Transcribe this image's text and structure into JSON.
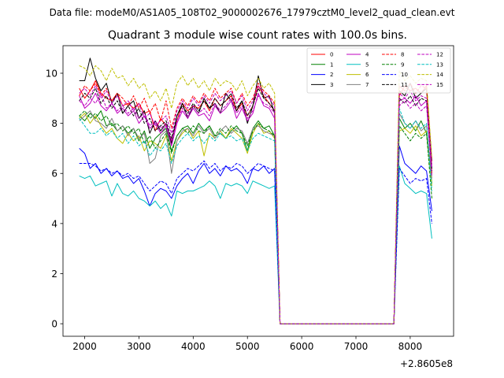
{
  "figure": {
    "suptitle": "Data file: modeM0/AS1A05_108T02_9000002676_17979cztM0_level2_quad_clean.evt"
  },
  "chart_data": {
    "type": "line",
    "title": "Quadrant 3 module wise count rates with 100.0s bins.",
    "xlabel": "",
    "ylabel": "",
    "x_offset_label": "+2.8605e8",
    "xlim": [
      1600,
      8800
    ],
    "ylim": [
      -0.5,
      11.1
    ],
    "xticks": [
      2000,
      3000,
      4000,
      5000,
      6000,
      7000,
      8000
    ],
    "yticks": [
      0,
      2,
      4,
      6,
      8,
      10
    ],
    "legend_position": "upper right",
    "legend_columns": 4,
    "grid": false,
    "x": [
      1900,
      2000,
      2100,
      2200,
      2300,
      2400,
      2500,
      2600,
      2700,
      2800,
      2900,
      3000,
      3100,
      3200,
      3300,
      3400,
      3500,
      3600,
      3700,
      3800,
      3900,
      4000,
      4100,
      4200,
      4300,
      4400,
      4500,
      4600,
      4700,
      4800,
      4900,
      5000,
      5100,
      5200,
      5300,
      5400,
      5500,
      5600,
      5700,
      5800,
      5900,
      6000,
      6100,
      6200,
      6300,
      6400,
      6500,
      6600,
      6700,
      6800,
      6900,
      7000,
      7100,
      7200,
      7300,
      7400,
      7500,
      7600,
      7700,
      7800,
      7900,
      8000,
      8100,
      8200,
      8300,
      8400
    ],
    "series": [
      {
        "name": "0",
        "color": "#ff0000",
        "dash": "solid",
        "values": [
          9.4,
          9.0,
          9.3,
          9.7,
          9.2,
          9.0,
          8.9,
          9.2,
          8.7,
          8.8,
          8.6,
          8.8,
          8.4,
          8.5,
          7.7,
          8.2,
          7.9,
          7.3,
          8.1,
          8.8,
          8.5,
          8.7,
          8.6,
          8.9,
          8.5,
          9.0,
          8.7,
          8.9,
          9.1,
          8.5,
          8.8,
          8.3,
          8.7,
          9.5,
          9.1,
          8.8,
          8.5,
          0.0,
          0.0,
          0.0,
          0.0,
          0.0,
          0.0,
          0.0,
          0.0,
          0.0,
          0.0,
          0.0,
          0.0,
          0.0,
          0.0,
          0.0,
          0.0,
          0.0,
          0.0,
          0.0,
          0.0,
          0.0,
          0.0,
          9.1,
          9.5,
          9.3,
          9.4,
          9.2,
          9.5,
          6.0
        ]
      },
      {
        "name": "1",
        "color": "#008000",
        "dash": "solid",
        "values": [
          8.3,
          8.1,
          8.4,
          8.2,
          8.5,
          7.9,
          8.0,
          7.7,
          7.9,
          7.6,
          7.8,
          7.3,
          7.7,
          7.0,
          7.4,
          7.6,
          7.8,
          6.9,
          7.5,
          7.8,
          7.9,
          7.6,
          8.0,
          7.7,
          7.9,
          7.5,
          7.6,
          7.4,
          7.7,
          7.9,
          7.6,
          6.9,
          7.8,
          8.1,
          7.8,
          7.9,
          7.5,
          0.0,
          0.0,
          0.0,
          0.0,
          0.0,
          0.0,
          0.0,
          0.0,
          0.0,
          0.0,
          0.0,
          0.0,
          0.0,
          0.0,
          0.0,
          0.0,
          0.0,
          0.0,
          0.0,
          0.0,
          0.0,
          0.0,
          8.2,
          7.8,
          8.0,
          7.7,
          8.1,
          7.6,
          5.6
        ]
      },
      {
        "name": "2",
        "color": "#0000ff",
        "dash": "solid",
        "values": [
          7.0,
          6.8,
          6.2,
          6.4,
          6.0,
          6.2,
          5.9,
          6.1,
          5.8,
          5.9,
          5.6,
          5.8,
          5.3,
          4.7,
          5.2,
          5.4,
          5.3,
          5.0,
          5.5,
          5.8,
          6.0,
          5.6,
          6.1,
          6.4,
          6.0,
          6.2,
          5.9,
          6.3,
          6.1,
          6.2,
          6.0,
          5.6,
          6.2,
          6.1,
          6.3,
          6.0,
          6.2,
          0.0,
          0.0,
          0.0,
          0.0,
          0.0,
          0.0,
          0.0,
          0.0,
          0.0,
          0.0,
          0.0,
          0.0,
          0.0,
          0.0,
          0.0,
          0.0,
          0.0,
          0.0,
          0.0,
          0.0,
          0.0,
          0.0,
          7.1,
          6.4,
          6.2,
          6.0,
          6.3,
          6.1,
          4.5
        ]
      },
      {
        "name": "3",
        "color": "#000000",
        "dash": "solid",
        "values": [
          9.7,
          9.7,
          10.6,
          9.8,
          9.3,
          9.6,
          8.8,
          9.2,
          8.4,
          8.7,
          8.9,
          8.2,
          8.5,
          7.6,
          8.1,
          7.7,
          8.0,
          7.2,
          8.3,
          8.8,
          8.2,
          8.7,
          8.4,
          9.0,
          8.6,
          8.8,
          8.4,
          9.2,
          8.9,
          8.5,
          8.9,
          8.0,
          8.7,
          9.9,
          9.0,
          9.1,
          8.4,
          0.0,
          0.0,
          0.0,
          0.0,
          0.0,
          0.0,
          0.0,
          0.0,
          0.0,
          0.0,
          0.0,
          0.0,
          0.0,
          0.0,
          0.0,
          0.0,
          0.0,
          0.0,
          0.0,
          0.0,
          0.0,
          0.0,
          9.3,
          9.1,
          9.6,
          9.0,
          9.2,
          9.4,
          6.5
        ]
      },
      {
        "name": "4",
        "color": "#bf00bf",
        "dash": "solid",
        "values": [
          9.1,
          8.6,
          8.8,
          9.2,
          8.7,
          8.5,
          8.8,
          8.4,
          8.6,
          8.3,
          8.5,
          8.0,
          8.3,
          7.8,
          8.0,
          7.6,
          7.9,
          7.1,
          8.0,
          8.5,
          8.2,
          8.6,
          8.3,
          8.4,
          8.1,
          8.7,
          8.4,
          8.6,
          8.9,
          8.2,
          8.6,
          8.1,
          8.4,
          9.2,
          8.7,
          8.6,
          8.2,
          0.0,
          0.0,
          0.0,
          0.0,
          0.0,
          0.0,
          0.0,
          0.0,
          0.0,
          0.0,
          0.0,
          0.0,
          0.0,
          0.0,
          0.0,
          0.0,
          0.0,
          0.0,
          0.0,
          0.0,
          0.0,
          0.0,
          8.9,
          9.0,
          8.8,
          9.1,
          8.7,
          8.9,
          6.2
        ]
      },
      {
        "name": "5",
        "color": "#00bfbf",
        "dash": "solid",
        "values": [
          5.9,
          5.8,
          5.9,
          5.5,
          5.6,
          5.7,
          5.1,
          5.6,
          5.2,
          5.1,
          5.3,
          5.0,
          4.9,
          4.7,
          4.9,
          4.6,
          4.8,
          4.3,
          5.3,
          5.2,
          5.3,
          5.3,
          5.4,
          5.5,
          5.7,
          5.5,
          5.0,
          5.6,
          5.5,
          5.6,
          5.5,
          5.2,
          5.7,
          5.6,
          5.5,
          5.4,
          5.5,
          0.0,
          0.0,
          0.0,
          0.0,
          0.0,
          0.0,
          0.0,
          0.0,
          0.0,
          0.0,
          0.0,
          0.0,
          0.0,
          0.0,
          0.0,
          0.0,
          0.0,
          0.0,
          0.0,
          0.0,
          0.0,
          0.0,
          6.3,
          5.6,
          5.4,
          5.2,
          5.3,
          5.2,
          3.4
        ]
      },
      {
        "name": "6",
        "color": "#bfbf00",
        "dash": "solid",
        "values": [
          8.2,
          8.4,
          8.0,
          8.3,
          7.9,
          7.6,
          7.8,
          7.4,
          7.2,
          7.6,
          7.3,
          7.5,
          6.9,
          7.3,
          7.2,
          7.0,
          7.5,
          6.5,
          7.3,
          7.6,
          7.8,
          7.4,
          7.7,
          6.7,
          7.6,
          7.4,
          7.7,
          7.4,
          7.8,
          7.6,
          7.4,
          6.8,
          7.6,
          8.0,
          7.6,
          7.7,
          7.4,
          0.0,
          0.0,
          0.0,
          0.0,
          0.0,
          0.0,
          0.0,
          0.0,
          0.0,
          0.0,
          0.0,
          0.0,
          0.0,
          0.0,
          0.0,
          0.0,
          0.0,
          0.0,
          0.0,
          0.0,
          0.0,
          0.0,
          7.7,
          7.8,
          7.6,
          7.9,
          7.5,
          7.7,
          5.5
        ]
      },
      {
        "name": "7",
        "color": "#808080",
        "dash": "solid",
        "values": [
          8.1,
          8.3,
          8.5,
          8.1,
          8.0,
          7.8,
          8.2,
          7.7,
          7.9,
          7.5,
          7.8,
          7.4,
          7.6,
          6.4,
          6.6,
          7.5,
          7.7,
          6.0,
          7.3,
          7.7,
          7.8,
          7.5,
          7.9,
          7.6,
          7.8,
          7.4,
          7.7,
          7.9,
          7.6,
          7.8,
          7.7,
          7.2,
          7.8,
          7.9,
          7.7,
          7.6,
          7.5,
          0.0,
          0.0,
          0.0,
          0.0,
          0.0,
          0.0,
          0.0,
          0.0,
          0.0,
          0.0,
          0.0,
          0.0,
          0.0,
          0.0,
          0.0,
          0.0,
          0.0,
          0.0,
          0.0,
          0.0,
          0.0,
          0.0,
          8.4,
          8.0,
          7.8,
          8.1,
          7.7,
          7.9,
          5.8
        ]
      },
      {
        "name": "8",
        "color": "#ff0000",
        "dash": "dashed",
        "values": [
          9.1,
          9.5,
          9.3,
          9.6,
          9.1,
          9.4,
          8.9,
          9.2,
          9.0,
          8.7,
          9.1,
          8.6,
          9.0,
          8.4,
          8.8,
          8.1,
          8.9,
          7.8,
          8.6,
          9.0,
          8.7,
          9.1,
          8.8,
          9.2,
          8.9,
          9.4,
          9.0,
          9.2,
          9.4,
          8.8,
          9.2,
          8.7,
          9.0,
          9.6,
          9.3,
          9.1,
          8.8,
          0.0,
          0.0,
          0.0,
          0.0,
          0.0,
          0.0,
          0.0,
          0.0,
          0.0,
          0.0,
          0.0,
          0.0,
          0.0,
          0.0,
          0.0,
          0.0,
          0.0,
          0.0,
          0.0,
          0.0,
          0.0,
          0.0,
          9.5,
          9.3,
          9.6,
          9.2,
          9.5,
          9.4,
          6.4
        ]
      },
      {
        "name": "9",
        "color": "#008000",
        "dash": "dashed",
        "values": [
          8.3,
          8.5,
          8.2,
          8.4,
          8.1,
          8.3,
          7.9,
          8.0,
          7.7,
          7.9,
          7.6,
          7.8,
          7.2,
          7.5,
          7.0,
          7.3,
          7.6,
          6.8,
          7.5,
          7.8,
          7.6,
          7.9,
          7.7,
          7.6,
          7.9,
          7.5,
          7.8,
          7.6,
          7.9,
          7.7,
          7.6,
          7.1,
          7.7,
          8.0,
          7.8,
          7.7,
          7.5,
          0.0,
          0.0,
          0.0,
          0.0,
          0.0,
          0.0,
          0.0,
          0.0,
          0.0,
          0.0,
          0.0,
          0.0,
          0.0,
          0.0,
          0.0,
          0.0,
          0.0,
          0.0,
          0.0,
          0.0,
          0.0,
          0.0,
          7.9,
          7.6,
          7.3,
          7.6,
          7.4,
          7.6,
          5.0
        ]
      },
      {
        "name": "10",
        "color": "#0000ff",
        "dash": "dashed",
        "values": [
          6.4,
          6.4,
          6.4,
          6.3,
          6.1,
          6.2,
          6.0,
          6.1,
          5.9,
          6.0,
          5.8,
          5.9,
          5.6,
          5.3,
          5.5,
          5.7,
          5.6,
          5.2,
          5.8,
          6.0,
          6.2,
          6.1,
          6.3,
          6.5,
          6.2,
          6.4,
          6.1,
          6.3,
          6.2,
          6.4,
          6.3,
          6.0,
          6.2,
          6.4,
          6.3,
          6.2,
          6.1,
          0.0,
          0.0,
          0.0,
          0.0,
          0.0,
          0.0,
          0.0,
          0.0,
          0.0,
          0.0,
          0.0,
          0.0,
          0.0,
          0.0,
          0.0,
          0.0,
          0.0,
          0.0,
          0.0,
          0.0,
          0.0,
          0.0,
          6.2,
          5.9,
          5.6,
          5.8,
          5.7,
          5.8,
          4.0
        ]
      },
      {
        "name": "11",
        "color": "#000000",
        "dash": "dashed",
        "values": [
          8.9,
          9.2,
          9.0,
          9.4,
          8.8,
          9.1,
          8.6,
          8.9,
          8.4,
          8.7,
          8.3,
          8.6,
          8.0,
          8.2,
          7.7,
          7.9,
          8.1,
          7.4,
          8.3,
          8.7,
          8.4,
          8.8,
          8.5,
          8.9,
          8.6,
          9.0,
          8.7,
          8.9,
          9.2,
          8.6,
          8.9,
          8.3,
          8.7,
          9.4,
          9.0,
          8.8,
          8.5,
          0.0,
          0.0,
          0.0,
          0.0,
          0.0,
          0.0,
          0.0,
          0.0,
          0.0,
          0.0,
          0.0,
          0.0,
          0.0,
          0.0,
          0.0,
          0.0,
          0.0,
          0.0,
          0.0,
          0.0,
          0.0,
          0.0,
          9.0,
          8.8,
          9.1,
          8.7,
          9.0,
          8.9,
          6.1
        ]
      },
      {
        "name": "12",
        "color": "#bf00bf",
        "dash": "dashed",
        "values": [
          8.9,
          8.7,
          9.0,
          8.8,
          9.2,
          8.6,
          8.8,
          8.5,
          8.7,
          8.4,
          8.6,
          8.2,
          8.4,
          7.9,
          8.1,
          7.8,
          8.0,
          7.3,
          8.1,
          8.6,
          8.3,
          8.7,
          8.4,
          8.6,
          8.3,
          8.8,
          8.5,
          8.7,
          9.0,
          8.4,
          8.7,
          8.2,
          8.5,
          9.1,
          8.8,
          8.7,
          8.4,
          0.0,
          0.0,
          0.0,
          0.0,
          0.0,
          0.0,
          0.0,
          0.0,
          0.0,
          0.0,
          0.0,
          0.0,
          0.0,
          0.0,
          0.0,
          0.0,
          0.0,
          0.0,
          0.0,
          0.0,
          0.0,
          0.0,
          8.7,
          8.9,
          8.6,
          8.8,
          8.5,
          8.7,
          5.9
        ]
      },
      {
        "name": "13",
        "color": "#00bfbf",
        "dash": "dashed",
        "values": [
          8.2,
          7.9,
          7.6,
          7.6,
          7.8,
          7.5,
          7.7,
          7.4,
          7.6,
          7.2,
          7.5,
          7.1,
          7.3,
          6.7,
          7.0,
          6.9,
          7.2,
          6.4,
          7.1,
          7.4,
          7.6,
          7.3,
          7.5,
          7.2,
          7.5,
          7.3,
          7.6,
          7.4,
          7.5,
          7.3,
          7.4,
          6.9,
          7.4,
          7.6,
          7.5,
          7.4,
          7.3,
          0.0,
          0.0,
          0.0,
          0.0,
          0.0,
          0.0,
          0.0,
          0.0,
          0.0,
          0.0,
          0.0,
          0.0,
          0.0,
          0.0,
          0.0,
          0.0,
          0.0,
          0.0,
          0.0,
          0.0,
          0.0,
          0.0,
          8.6,
          8.0,
          7.8,
          8.1,
          7.8,
          8.0,
          5.3
        ]
      },
      {
        "name": "14",
        "color": "#bfbf00",
        "dash": "dashed",
        "values": [
          10.3,
          10.2,
          9.9,
          10.3,
          10.1,
          9.7,
          10.2,
          9.8,
          9.9,
          9.5,
          9.8,
          9.4,
          9.6,
          9.0,
          9.3,
          8.9,
          9.4,
          8.6,
          9.6,
          9.9,
          9.5,
          9.8,
          9.4,
          9.7,
          9.3,
          9.8,
          9.5,
          9.7,
          9.6,
          9.3,
          9.7,
          9.1,
          9.5,
          9.8,
          9.4,
          9.6,
          9.2,
          0.0,
          0.0,
          0.0,
          0.0,
          0.0,
          0.0,
          0.0,
          0.0,
          0.0,
          0.0,
          0.0,
          0.0,
          0.0,
          0.0,
          0.0,
          0.0,
          0.0,
          0.0,
          0.0,
          0.0,
          0.0,
          0.0,
          10.1,
          9.7,
          9.9,
          9.6,
          9.8,
          9.7,
          6.6
        ]
      },
      {
        "name": "15",
        "color": "#bf00bf",
        "dash": "dashed",
        "values": [
          9.2,
          9.4,
          9.1,
          9.5,
          9.0,
          9.3,
          8.8,
          9.1,
          8.7,
          8.9,
          8.5,
          8.8,
          8.2,
          8.4,
          7.9,
          8.1,
          8.3,
          7.6,
          8.5,
          8.9,
          8.6,
          9.0,
          8.7,
          9.1,
          8.8,
          9.2,
          8.9,
          9.1,
          9.3,
          8.8,
          9.1,
          8.5,
          8.9,
          9.5,
          9.2,
          9.0,
          8.7,
          0.0,
          0.0,
          0.0,
          0.0,
          0.0,
          0.0,
          0.0,
          0.0,
          0.0,
          0.0,
          0.0,
          0.0,
          0.0,
          0.0,
          0.0,
          0.0,
          0.0,
          0.0,
          0.0,
          0.0,
          0.0,
          0.0,
          9.2,
          9.0,
          9.3,
          8.9,
          9.1,
          9.0,
          6.3
        ]
      }
    ]
  }
}
